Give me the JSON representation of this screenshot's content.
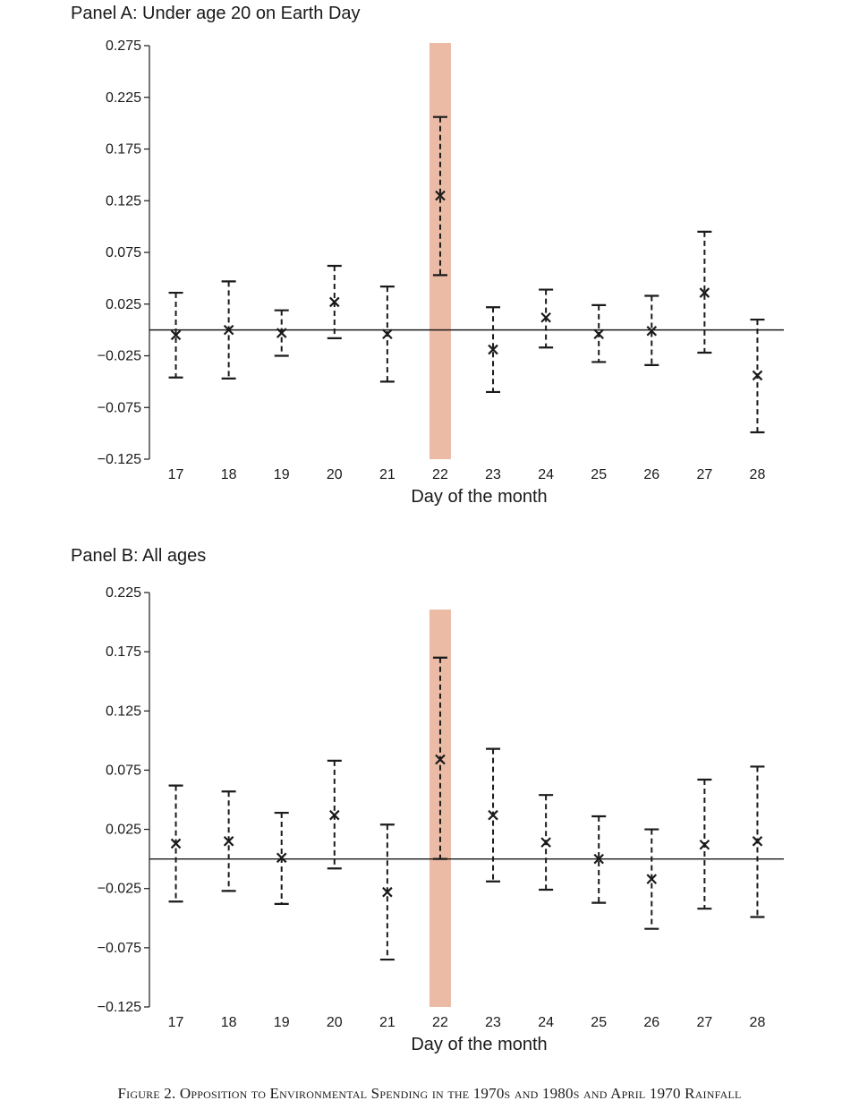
{
  "caption": "Figure 2. Opposition to Environmental Spending in the 1970s and 1980s and April 1970 Rainfall",
  "chart_data": [
    {
      "type": "scatter",
      "title": "Panel A: Under age 20 on Earth Day",
      "xlabel": "Day of the month",
      "ylabel": "",
      "x": [
        17,
        18,
        19,
        20,
        21,
        22,
        23,
        24,
        25,
        26,
        27,
        28
      ],
      "series": [
        {
          "values": [
            -0.005,
            0.0,
            -0.003,
            0.027,
            -0.004,
            0.13,
            -0.019,
            0.012,
            -0.004,
            -0.001,
            0.036,
            -0.044
          ],
          "lower": [
            -0.046,
            -0.047,
            -0.025,
            -0.008,
            -0.05,
            0.053,
            -0.06,
            -0.017,
            -0.031,
            -0.034,
            -0.022,
            -0.099
          ],
          "upper": [
            0.036,
            0.047,
            0.019,
            0.062,
            0.042,
            0.206,
            0.022,
            0.039,
            0.024,
            0.033,
            0.095,
            0.01
          ]
        }
      ],
      "highlight_x": 22,
      "reference_y": 0,
      "yticks": [
        0.275,
        0.225,
        0.175,
        0.125,
        0.075,
        0.025,
        -0.025,
        -0.075,
        -0.125
      ],
      "ytick_labels": [
        "0.275",
        "0.225",
        "0.175",
        "0.125",
        "0.075",
        "0.025",
        "−0.025",
        "−0.075",
        "−0.125"
      ],
      "ylim": [
        -0.125,
        0.275
      ],
      "xlim": [
        16.5,
        28.5
      ],
      "grid": false
    },
    {
      "type": "scatter",
      "title": "Panel B: All ages",
      "xlabel": "Day of the month",
      "ylabel": "",
      "x": [
        17,
        18,
        19,
        20,
        21,
        22,
        23,
        24,
        25,
        26,
        27,
        28
      ],
      "series": [
        {
          "values": [
            0.013,
            0.015,
            0.001,
            0.037,
            -0.028,
            0.084,
            0.037,
            0.014,
            0.0,
            -0.017,
            0.012,
            0.015
          ],
          "lower": [
            -0.036,
            -0.027,
            -0.038,
            -0.008,
            -0.085,
            0.0,
            -0.019,
            -0.026,
            -0.037,
            -0.059,
            -0.042,
            -0.049
          ],
          "upper": [
            0.062,
            0.057,
            0.039,
            0.083,
            0.029,
            0.17,
            0.093,
            0.054,
            0.036,
            0.025,
            0.067,
            0.078
          ]
        }
      ],
      "highlight_x": 22,
      "reference_y": 0,
      "yticks": [
        0.225,
        0.175,
        0.125,
        0.075,
        0.025,
        -0.025,
        -0.075,
        -0.125
      ],
      "ytick_labels": [
        "0.225",
        "0.175",
        "0.125",
        "0.075",
        "0.025",
        "−0.025",
        "−0.075",
        "−0.125"
      ],
      "ylim": [
        -0.125,
        0.225
      ],
      "xlim": [
        16.5,
        28.5
      ],
      "grid": false
    }
  ],
  "colors": {
    "highlight": "#ebbba6",
    "ink": "#1a1a1a"
  }
}
